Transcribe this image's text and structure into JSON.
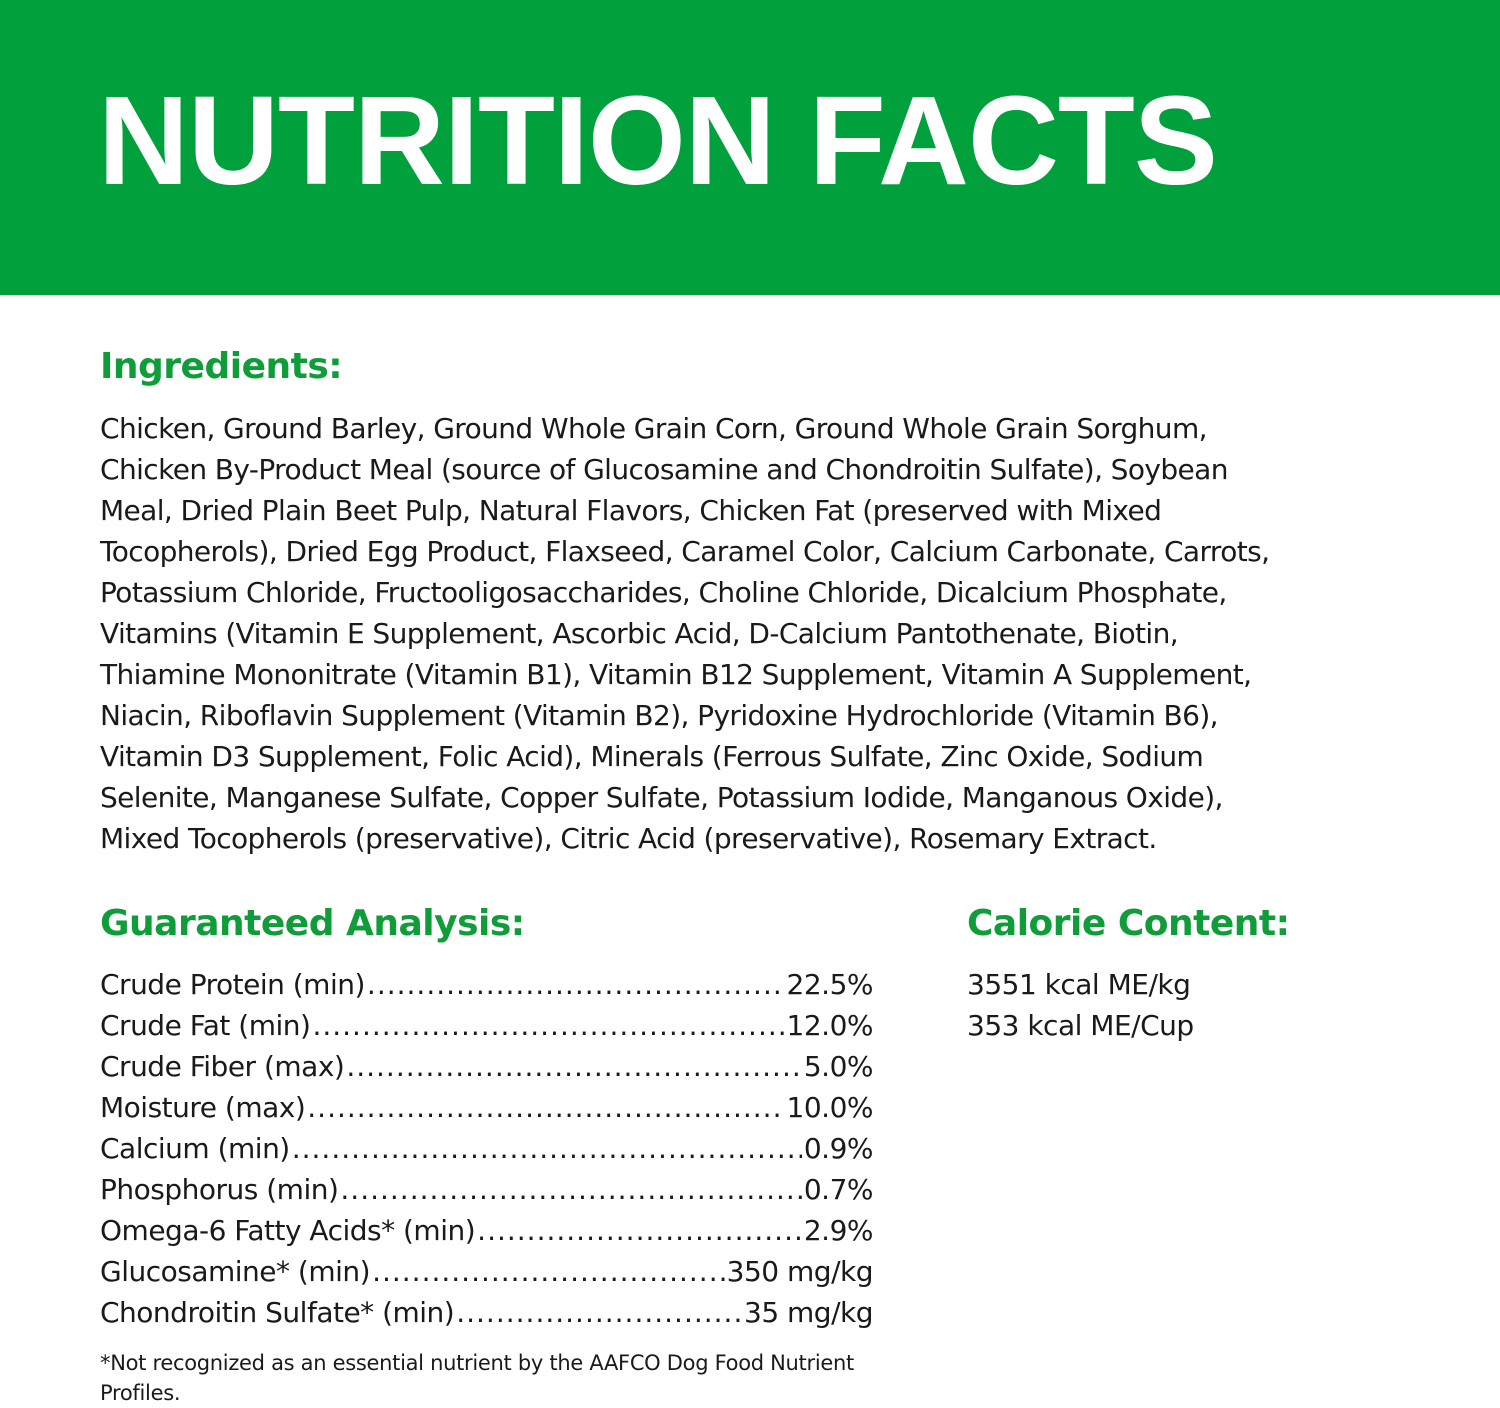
{
  "header": {
    "title": "NUTRITION FACTS",
    "color": "#00a03c"
  },
  "ingredients": {
    "heading": "Ingredients:",
    "lines": [
      "Chicken, Ground Barley, Ground Whole Grain Corn, Ground Whole Grain Sorghum,",
      "Chicken By-Product Meal (source of Glucosamine and Chondroitin Sulfate), Soybean",
      "Meal, Dried Plain Beet Pulp, Natural Flavors, Chicken Fat (preserved with Mixed",
      "Tocopherols), Dried Egg Product, Flaxseed, Caramel Color, Calcium Carbonate, Carrots,",
      "Potassium Chloride, Fructooligosaccharides, Choline Chloride, Dicalcium Phosphate,",
      "Vitamins (Vitamin E Supplement, Ascorbic Acid, D-Calcium Pantothenate, Biotin,",
      "Thiamine Mononitrate (Vitamin B1), Vitamin B12 Supplement, Vitamin A Supplement,",
      "Niacin, Riboflavin Supplement (Vitamin B2), Pyridoxine Hydrochloride (Vitamin B6),",
      "Vitamin D3 Supplement, Folic Acid), Minerals (Ferrous Sulfate, Zinc Oxide, Sodium",
      "Selenite, Manganese Sulfate, Copper Sulfate, Potassium Iodide, Manganous Oxide),",
      "Mixed Tocopherols (preservative), Citric Acid (preservative), Rosemary Extract."
    ]
  },
  "analysis": {
    "heading": "Guaranteed Analysis:",
    "rows": [
      {
        "label": "Crude Protein (min)",
        "value": "22.5%"
      },
      {
        "label": "Crude Fat (min)",
        "value": "12.0%"
      },
      {
        "label": "Crude Fiber (max)",
        "value": "5.0%"
      },
      {
        "label": "Moisture (max)",
        "value": "10.0%"
      },
      {
        "label": "Calcium (min)",
        "value": "0.9%"
      },
      {
        "label": "Phosphorus (min)",
        "value": "0.7%"
      },
      {
        "label": "Omega-6 Fatty Acids* (min)",
        "value": "2.9%"
      },
      {
        "label": "Glucosamine* (min)",
        "value": "350 mg/kg"
      },
      {
        "label": "Chondroitin Sulfate* (min)",
        "value": "35 mg/kg"
      }
    ]
  },
  "calorie": {
    "heading": "Calorie Content:",
    "lines": [
      "3551 kcal ME/kg",
      "353 kcal ME/Cup"
    ]
  },
  "footnote": "*Not recognized as an essential nutrient by the AAFCO Dog Food Nutrient Profiles."
}
